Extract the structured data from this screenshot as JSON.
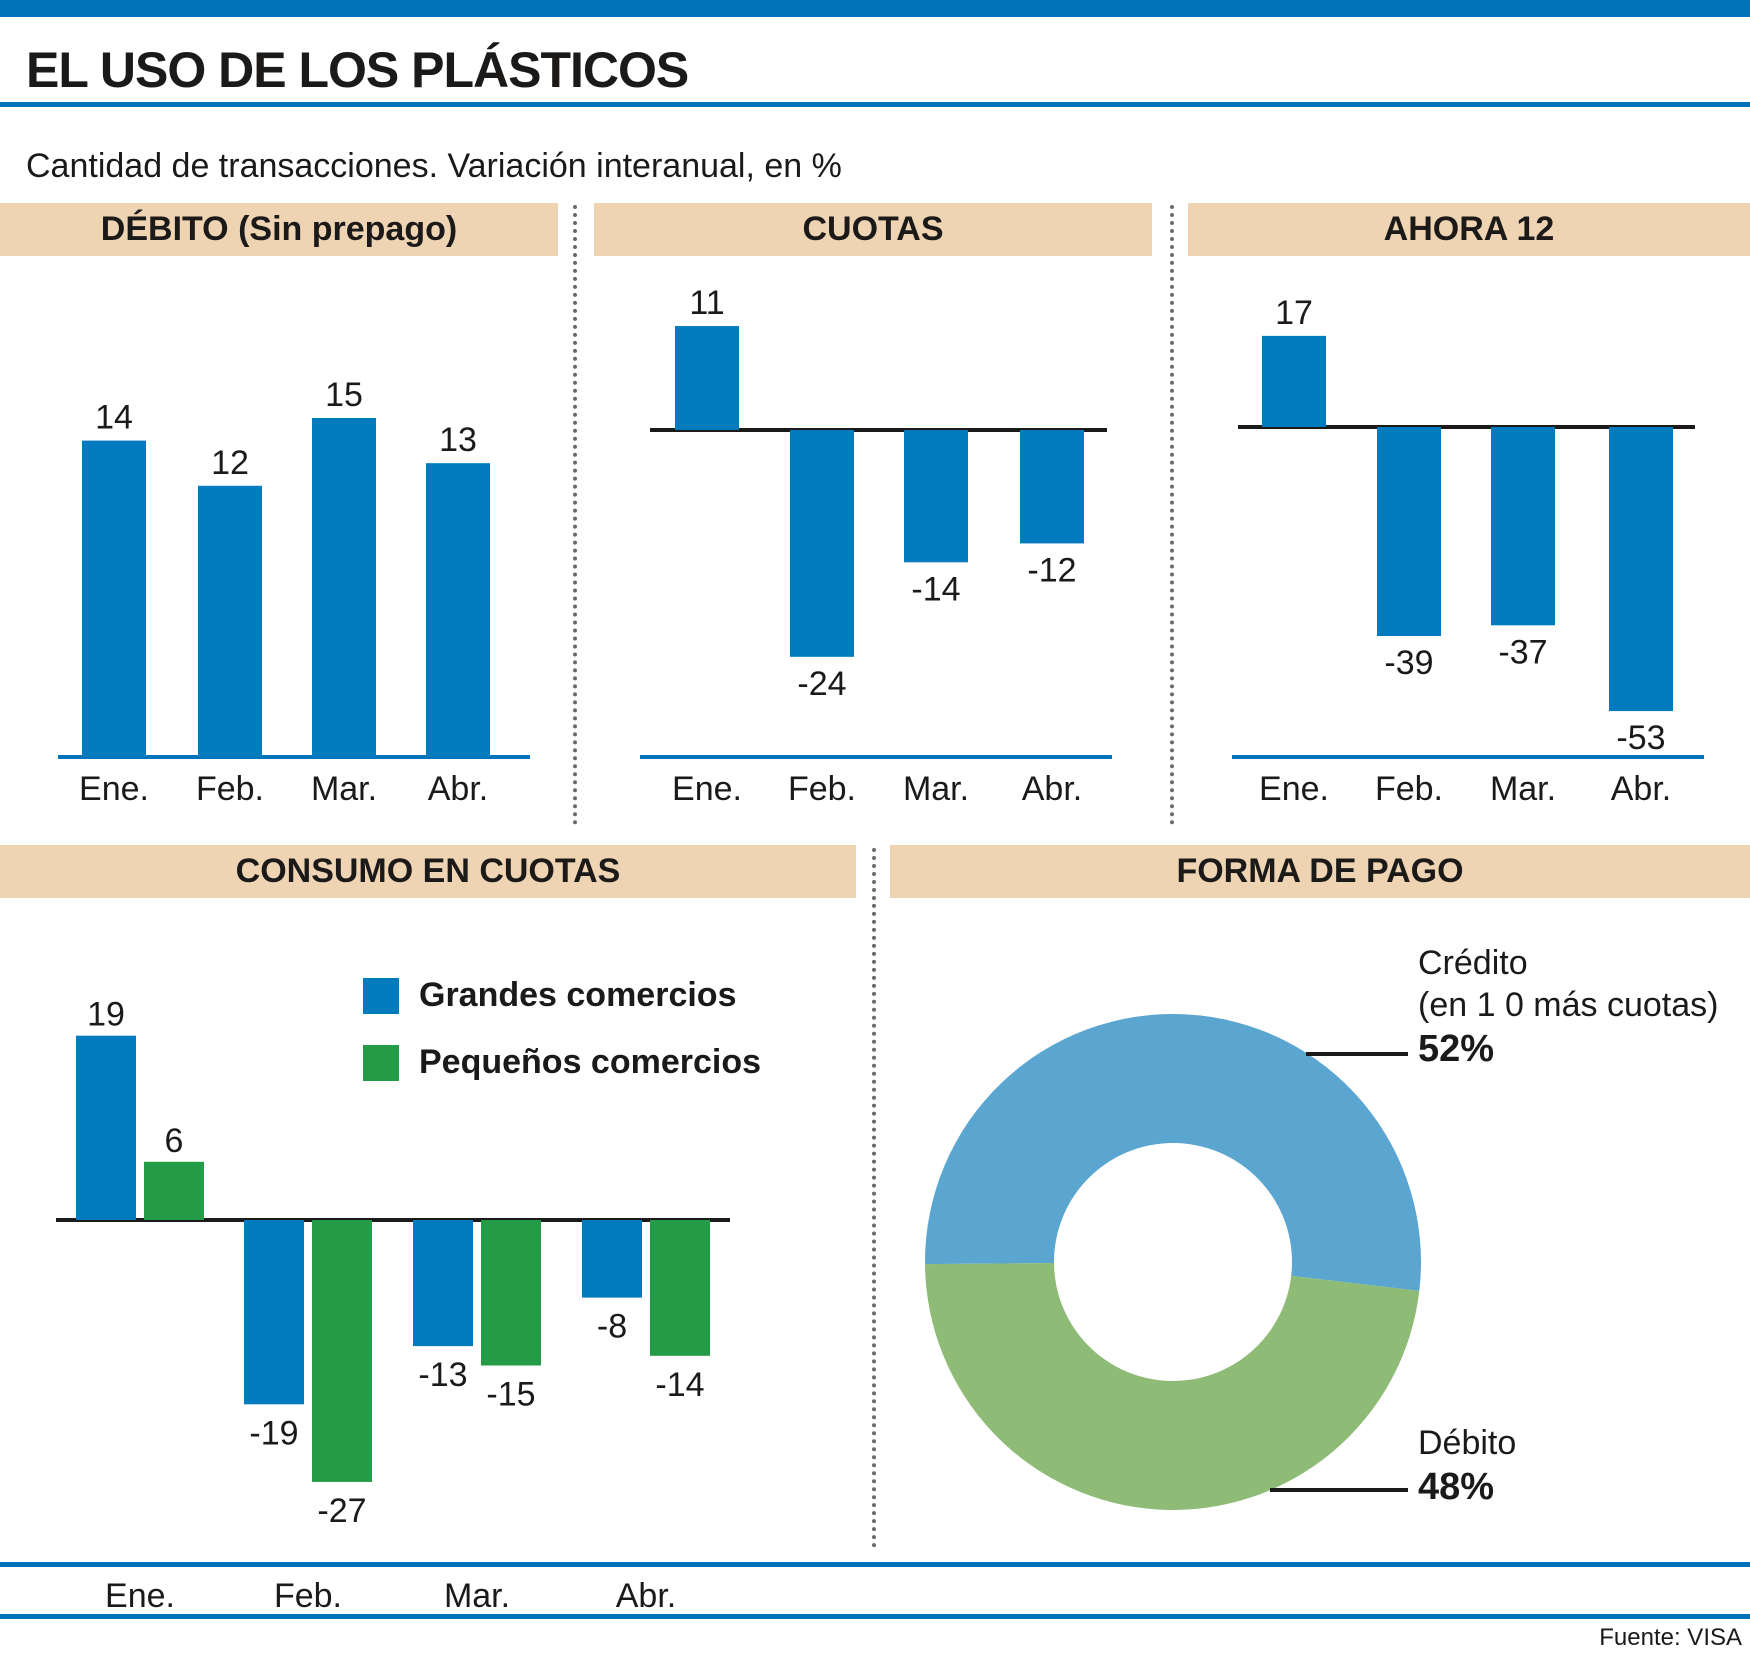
{
  "title": "EL USO DE LOS PLÁSTICOS",
  "subtitle": "Cantidad de transacciones. Variación interanual, en %",
  "source": "Fuente: VISA",
  "colors": {
    "accent": "#0073ba",
    "bar_blue": "#007bbd",
    "bar_green": "#249b46",
    "header_bg": "#efd4b4",
    "pie_credit": "#5ba6d0",
    "pie_debit": "#8ebb76"
  },
  "chart_data": [
    {
      "id": "debito",
      "type": "bar",
      "title": "DÉBITO (Sin prepago)",
      "categories": [
        "Ene.",
        "Feb.",
        "Mar.",
        "Abr."
      ],
      "values": [
        14,
        12,
        15,
        13
      ],
      "ylim": [
        0,
        15
      ]
    },
    {
      "id": "cuotas",
      "type": "bar",
      "title": "CUOTAS",
      "categories": [
        "Ene.",
        "Feb.",
        "Mar.",
        "Abr."
      ],
      "values": [
        11,
        -24,
        -14,
        -12
      ],
      "ylim": [
        -24,
        11
      ]
    },
    {
      "id": "ahora12",
      "type": "bar",
      "title": "AHORA 12",
      "categories": [
        "Ene.",
        "Feb.",
        "Mar.",
        "Abr."
      ],
      "values": [
        17,
        -39,
        -37,
        -53
      ],
      "ylim": [
        -53,
        17
      ]
    },
    {
      "id": "consumo",
      "type": "bar",
      "title": "CONSUMO EN CUOTAS",
      "categories": [
        "Ene.",
        "Feb.",
        "Mar.",
        "Abr."
      ],
      "series": [
        {
          "name": "Grandes comercios",
          "values": [
            19,
            -19,
            -13,
            -8
          ]
        },
        {
          "name": "Pequeños comercios",
          "values": [
            6,
            -27,
            -15,
            -14
          ]
        }
      ],
      "ylim": [
        -27,
        19
      ]
    },
    {
      "id": "forma_pago",
      "type": "pie",
      "title": "FORMA DE PAGO",
      "slices": [
        {
          "label": "Crédito",
          "sublabel": "(en 1 0 más cuotas)",
          "value": 52,
          "display": "52%"
        },
        {
          "label": "Débito",
          "value": 48,
          "display": "48%"
        }
      ]
    }
  ]
}
